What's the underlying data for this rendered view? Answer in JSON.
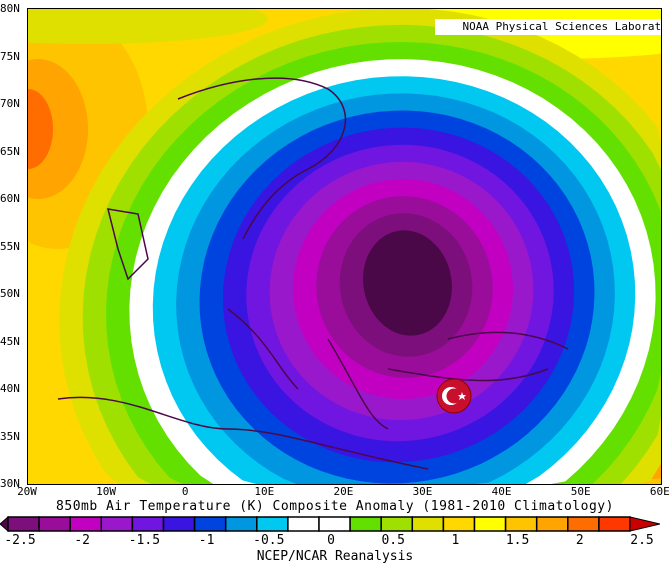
{
  "title": "850mb Air Temperature (K) Composite Anomaly (1981-2010 Climatology)",
  "credit": "NOAA Physical Sciences Laboratory",
  "source": "NCEP/NCAR Reanalysis",
  "lat_labels": [
    "80N",
    "75N",
    "70N",
    "65N",
    "60N",
    "55N",
    "50N",
    "45N",
    "40N",
    "35N",
    "30N"
  ],
  "lon_labels": [
    "20W",
    "10W",
    "0",
    "10E",
    "20E",
    "30E",
    "40E",
    "50E",
    "60E"
  ],
  "colorbar": {
    "ticks": [
      "-2.5",
      "-2",
      "-1.5",
      "-1",
      "-0.5",
      "0",
      "0.5",
      "1",
      "1.5",
      "2",
      "2.5"
    ],
    "low_color": "#4a0848",
    "colors": [
      "#7d0f7d",
      "#9a0c9a",
      "#c200c2",
      "#9a18cc",
      "#7016e0",
      "#3a14e0",
      "#0044e0",
      "#0096e0",
      "#00c8f0",
      "#ffffff",
      "#ffffff",
      "#64e000",
      "#a0e000",
      "#e0e000",
      "#ffd800",
      "#ffff00",
      "#ffc400",
      "#ffa400",
      "#ff6c00",
      "#ff3800"
    ],
    "high_color": "#c80000"
  },
  "marker": {
    "icon": "turkey-flag-icon",
    "color": "#c8102e"
  }
}
